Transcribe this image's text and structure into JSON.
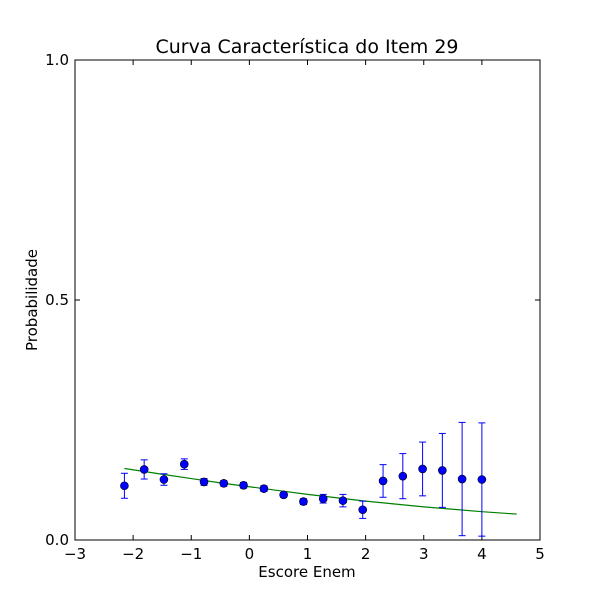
{
  "chart_data": {
    "type": "scatter",
    "title": "Curva Característica do Item 29",
    "xlabel": "Escore Enem",
    "ylabel": "Probabilidade",
    "xlim": [
      -3,
      5
    ],
    "ylim": [
      0.0,
      1.0
    ],
    "x_ticks": [
      "−3",
      "−2",
      "−1",
      "0",
      "1",
      "2",
      "3",
      "4",
      "5"
    ],
    "y_ticks": [
      "0.0",
      "0.5",
      "1.0"
    ],
    "grid": false,
    "legend": "none",
    "observed": {
      "color": "#0000ff",
      "points": [
        {
          "x": -2.15,
          "y": 0.113,
          "err": 0.026
        },
        {
          "x": -1.81,
          "y": 0.147,
          "err": 0.02
        },
        {
          "x": -1.47,
          "y": 0.126,
          "err": 0.012
        },
        {
          "x": -1.12,
          "y": 0.158,
          "err": 0.011
        },
        {
          "x": -0.78,
          "y": 0.121,
          "err": 0.007
        },
        {
          "x": -0.44,
          "y": 0.118,
          "err": 0.006
        },
        {
          "x": -0.1,
          "y": 0.114,
          "err": 0.006
        },
        {
          "x": 0.25,
          "y": 0.107,
          "err": 0.006
        },
        {
          "x": 0.59,
          "y": 0.094,
          "err": 0.005
        },
        {
          "x": 0.93,
          "y": 0.08,
          "err": 0.006
        },
        {
          "x": 1.27,
          "y": 0.086,
          "err": 0.009
        },
        {
          "x": 1.61,
          "y": 0.082,
          "err": 0.013
        },
        {
          "x": 1.95,
          "y": 0.063,
          "err": 0.018
        },
        {
          "x": 2.3,
          "y": 0.123,
          "err": 0.034
        },
        {
          "x": 2.64,
          "y": 0.133,
          "err": 0.047
        },
        {
          "x": 2.98,
          "y": 0.148,
          "err": 0.056
        },
        {
          "x": 3.32,
          "y": 0.145,
          "err": 0.077
        },
        {
          "x": 3.66,
          "y": 0.127,
          "err": 0.118
        },
        {
          "x": 4.0,
          "y": 0.126,
          "err": 0.118
        }
      ]
    },
    "fitted": {
      "color": "#008000",
      "x": [
        -2.15,
        -1.5,
        -1.0,
        -0.5,
        0.0,
        0.5,
        1.0,
        1.5,
        2.0,
        2.5,
        3.0,
        3.5,
        4.0,
        4.6
      ],
      "y": [
        0.149,
        0.137,
        0.128,
        0.119,
        0.111,
        0.103,
        0.095,
        0.088,
        0.081,
        0.075,
        0.069,
        0.064,
        0.059,
        0.054
      ]
    }
  }
}
